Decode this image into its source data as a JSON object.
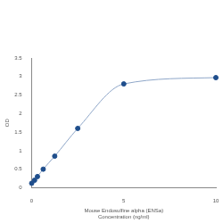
{
  "chart_data": {
    "type": "scatter",
    "x_label": [
      "Mouse Endosulfine alpha (ENSa)",
      "Concentration (ng/ml)"
    ],
    "y_label": "OD",
    "x": [
      0,
      0.156,
      0.3125,
      0.625,
      1.25,
      2.5,
      5,
      10
    ],
    "values": [
      0.12,
      0.2,
      0.3,
      0.5,
      0.85,
      1.6,
      2.8,
      2.97
    ],
    "color": "#1f4e8c",
    "marker": "circle",
    "line_style": "solid",
    "xlim": [
      0,
      10
    ],
    "xticks": [
      0,
      5,
      10
    ],
    "ylim": [
      0,
      3.5
    ],
    "yticks": [
      0,
      0.5,
      1,
      1.5,
      2,
      2.5,
      3,
      3.5
    ],
    "grid": false
  }
}
